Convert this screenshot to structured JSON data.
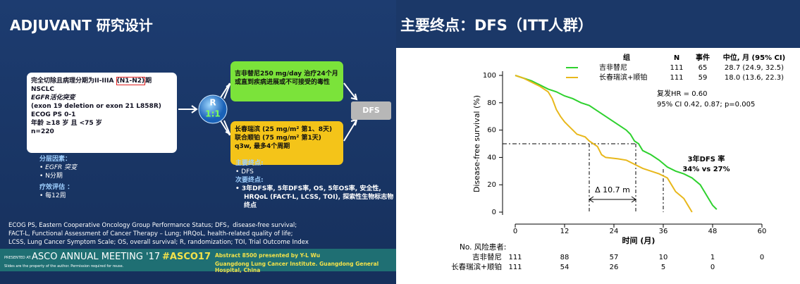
{
  "left": {
    "title": "ADJUVANT 研究设计",
    "eligibility": {
      "line1": [
        "完全切除且病理分期为II-IIIA ",
        "(N1-N2)",
        "期 NSCLC"
      ],
      "lines": [
        "EGFR活化突变",
        "(exon 19 deletion or exon 21 L858R)",
        "ECOG PS 0-1",
        "年龄 ≥18 岁 且 <75 岁",
        "n=220"
      ]
    },
    "randomization": [
      "R",
      "1:1"
    ],
    "arms": [
      "吉非替尼250 mg/day 治疗24个月或直到疾病进展或不可接受的毒性",
      "长春瑞滨 (25 mg/m² 第1、8天) 联合顺铂 (75 mg/m² 第1天) q3w, 最多4个周期"
    ],
    "outcome": "DFS",
    "stratification": {
      "title": "分层因素：",
      "items": [
        "EGFR 突变",
        "N分期"
      ]
    },
    "assessment": {
      "title": "疗效评估 ：",
      "items": [
        "每12周"
      ]
    },
    "endpoints": {
      "primary_title": "主要终点:",
      "primary": [
        "DFS"
      ],
      "secondary_title": "次要终点:",
      "secondary": [
        "3年DFS率, 5年DFS率, OS, 5年OS率, 安全性, HRQoL (FACT-L, LCSS, TOI), 探索性生物标志物终点"
      ]
    },
    "footnote": [
      "ECOG PS, Eastern Cooperative Oncology Group Performance Status; DFS，disease-free survival;",
      "FACT-L, Functional Assessment of Cancer Therapy – Lung; HRQoL, health-related quality of life;",
      "LCSS, Lung Cancer Symptom Scale; OS, overall survival; R, randomization; TOI, Trial Outcome Index"
    ],
    "banner": {
      "presented": "PRESENTED AT:",
      "meeting": "ASCO ANNUAL MEETING '17",
      "hashtag": "#ASCO17",
      "note": "Slides are the property of the author. Permission required for reuse.",
      "abstract": "Abstract 8500 presented by Y-L Wu",
      "institute": "Guangdong Lung Cancer Institute. Guangdong General Hospital, China"
    }
  },
  "chart_data": {
    "type": "line",
    "title": "主要终点：DFS（ITT人群）",
    "xlabel": "时间 (月)",
    "ylabel": "Disease-free survival (%)",
    "xlim": [
      0,
      60
    ],
    "xticks": [
      0,
      12,
      24,
      36,
      48,
      60
    ],
    "ylim": [
      0,
      100
    ],
    "yticks": [
      0,
      20,
      40,
      60,
      80,
      100
    ],
    "legend_header": [
      "组",
      "N",
      "事件",
      "中位, 月 (95% CI)"
    ],
    "series": [
      {
        "name": "吉非替尼",
        "color": "#2ed12e",
        "n": 111,
        "events": 65,
        "median": "28.7 (24.9, 32.5)",
        "x": [
          0,
          2,
          4,
          6,
          8,
          10,
          12,
          14,
          16,
          18,
          20,
          22,
          24,
          26,
          27,
          28,
          29,
          30,
          31,
          33,
          35,
          37,
          39,
          41,
          43,
          45,
          46,
          47,
          48,
          49
        ],
        "values": [
          100,
          98,
          96,
          93,
          90,
          88,
          85,
          83,
          80,
          78,
          74,
          70,
          66,
          62,
          60,
          57,
          52,
          50,
          45,
          42,
          38,
          33,
          30,
          28,
          25,
          20,
          15,
          10,
          5,
          2
        ]
      },
      {
        "name": "长春瑞滨+顺铂",
        "color": "#e8b81c",
        "n": 111,
        "events": 59,
        "median": "18.0 (13.6, 22.3)",
        "x": [
          0,
          2,
          4,
          6,
          8,
          9,
          10,
          11,
          12,
          13,
          14,
          15,
          17,
          18,
          19,
          20,
          21,
          22,
          25,
          27,
          29,
          31,
          33,
          35,
          37,
          38,
          39,
          41,
          42,
          43
        ],
        "values": [
          100,
          98,
          95,
          92,
          88,
          83,
          75,
          70,
          66,
          63,
          60,
          57,
          55,
          52,
          50,
          48,
          42,
          40,
          39,
          38,
          35,
          32,
          30,
          28,
          25,
          20,
          15,
          10,
          5,
          0
        ]
      }
    ],
    "annotations": {
      "hr": [
        "复发HR = 0.60",
        "95% CI 0.42, 0.87; p=0.005"
      ],
      "delta": "Δ 10.7 m",
      "dfs3": [
        "3年DFS 率",
        "34% vs 27%"
      ]
    },
    "risk_table": {
      "title": "No. 风险患者:",
      "rows": [
        {
          "name": "吉非替尼",
          "values": [
            111,
            88,
            57,
            10,
            1,
            0
          ]
        },
        {
          "name": "长春瑞滨+顺铂",
          "values": [
            111,
            54,
            26,
            5,
            0,
            null
          ]
        }
      ]
    }
  }
}
